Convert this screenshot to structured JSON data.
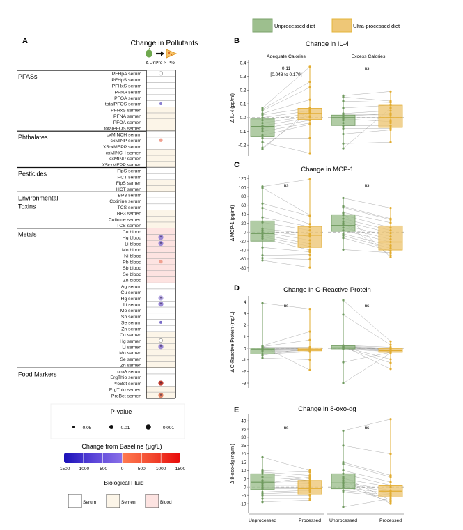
{
  "legend_top": {
    "items": [
      {
        "label": "Unprocessed diet",
        "color": "#9dbf8e",
        "border": "#7aa26a"
      },
      {
        "label": "Ultra-processed diet",
        "color": "#eec777",
        "border": "#e4b43a"
      }
    ]
  },
  "panelA": {
    "letter": "A",
    "title": "Change in Pollutants",
    "subtitle": "Δ UnPro > Pro",
    "icons": [
      "apple-icon",
      "arrow-right-icon",
      "pizza-icon"
    ],
    "fluid_colors": {
      "serum": "#ffffff",
      "semen": "#fcf5e8",
      "blood": "#fde3e1"
    },
    "groups": [
      {
        "name": "PFASs",
        "rows": [
          {
            "label": "PFHpA serum",
            "fluid": "serum",
            "marker": {
              "type": "open",
              "p": "0.05"
            }
          },
          {
            "label": "PFHpS serum",
            "fluid": "serum"
          },
          {
            "label": "PFHxS serum",
            "fluid": "serum"
          },
          {
            "label": "PFNA serum",
            "fluid": "serum"
          },
          {
            "label": "PFOA serum",
            "fluid": "serum"
          },
          {
            "label": "totalPFOS serum",
            "fluid": "serum",
            "marker": {
              "type": "filled",
              "color": "#8a7fd0",
              "p": "0.05"
            }
          },
          {
            "label": "PFHxS semen",
            "fluid": "semen"
          },
          {
            "label": "PFNA semen",
            "fluid": "semen"
          },
          {
            "label": "PFOA semen",
            "fluid": "semen"
          },
          {
            "label": "totalPFOS semen",
            "fluid": "semen"
          }
        ]
      },
      {
        "name": "Phthalates",
        "rows": [
          {
            "label": "cxMINCH serum",
            "fluid": "serum"
          },
          {
            "label": "cxMINP serum",
            "fluid": "serum",
            "marker": {
              "type": "filled",
              "color": "#f0a090",
              "p": "0.01"
            }
          },
          {
            "label": "X5cxMEPP serum",
            "fluid": "serum"
          },
          {
            "label": "cxMINCH semen",
            "fluid": "semen"
          },
          {
            "label": "cxMINP semen",
            "fluid": "semen"
          },
          {
            "label": "X5cxMEPP semen",
            "fluid": "semen"
          }
        ]
      },
      {
        "name": "Pesticides",
        "rows": [
          {
            "label": "FipS serum",
            "fluid": "serum"
          },
          {
            "label": "HCT serum",
            "fluid": "serum"
          },
          {
            "label": "FipS semen",
            "fluid": "semen"
          },
          {
            "label": "HCT semen",
            "fluid": "semen"
          }
        ]
      },
      {
        "name": "Environmental Toxins",
        "name_lines": [
          "Environmental",
          "Toxins"
        ],
        "rows": [
          {
            "label": "BP3 serum",
            "fluid": "serum"
          },
          {
            "label": "Cotinine serum",
            "fluid": "serum"
          },
          {
            "label": "TCS serum",
            "fluid": "serum"
          },
          {
            "label": "BP3 semen",
            "fluid": "semen"
          },
          {
            "label": "Cotinine semen",
            "fluid": "semen"
          },
          {
            "label": "TCS semen",
            "fluid": "semen"
          }
        ]
      },
      {
        "name": "Metals",
        "rows": [
          {
            "label": "Cu blood",
            "fluid": "blood"
          },
          {
            "label": "Hg blood",
            "fluid": "blood",
            "marker": {
              "type": "filled",
              "color": "#9a88d6",
              "p": "0.001",
              "star": true
            }
          },
          {
            "label": "Li blood",
            "fluid": "blood",
            "marker": {
              "type": "filled",
              "color": "#9a88d6",
              "p": "0.001",
              "star": true
            }
          },
          {
            "label": "Mo blood",
            "fluid": "blood"
          },
          {
            "label": "Ni blood",
            "fluid": "blood"
          },
          {
            "label": "Pb blood",
            "fluid": "blood",
            "marker": {
              "type": "filled",
              "color": "#f0a090",
              "p": "0.01"
            }
          },
          {
            "label": "Sb blood",
            "fluid": "blood"
          },
          {
            "label": "Se blood",
            "fluid": "blood"
          },
          {
            "label": "Zn blood",
            "fluid": "blood"
          },
          {
            "label": "Ag serum",
            "fluid": "serum"
          },
          {
            "label": "Cu serum",
            "fluid": "serum"
          },
          {
            "label": "Hg serum",
            "fluid": "serum",
            "marker": {
              "type": "filled",
              "color": "#b5a8e2",
              "p": "0.001",
              "star": true
            }
          },
          {
            "label": "Li serum",
            "fluid": "serum",
            "marker": {
              "type": "filled",
              "color": "#9a88d6",
              "p": "0.001",
              "star": true
            }
          },
          {
            "label": "Mo serum",
            "fluid": "serum"
          },
          {
            "label": "Sb serum",
            "fluid": "serum"
          },
          {
            "label": "Se serum",
            "fluid": "serum",
            "marker": {
              "type": "filled",
              "color": "#7a6cc8",
              "p": "0.05"
            }
          },
          {
            "label": "Zn serum",
            "fluid": "serum"
          },
          {
            "label": "Cu semen",
            "fluid": "semen"
          },
          {
            "label": "Hg semen",
            "fluid": "semen",
            "marker": {
              "type": "open",
              "p": "0.05"
            }
          },
          {
            "label": "Li semen",
            "fluid": "semen",
            "marker": {
              "type": "filled",
              "color": "#9a88d6",
              "p": "0.001",
              "star": true
            }
          },
          {
            "label": "Mo semen",
            "fluid": "semen"
          },
          {
            "label": "Se semen",
            "fluid": "semen"
          },
          {
            "label": "Zn semen",
            "fluid": "semen"
          }
        ]
      },
      {
        "name": "Food Markers",
        "rows": [
          {
            "label": "uroA serum",
            "fluid": "serum"
          },
          {
            "label": "ErgThio serum",
            "fluid": "serum"
          },
          {
            "label": "ProBet serum",
            "fluid": "serum",
            "marker": {
              "type": "filled",
              "color": "#c0392b",
              "p": "0.001",
              "star": true
            }
          },
          {
            "label": "ErgThio semen",
            "fluid": "semen"
          },
          {
            "label": "ProBet semen",
            "fluid": "semen",
            "marker": {
              "type": "filled",
              "color": "#e08060",
              "p": "0.001",
              "star": true
            }
          }
        ]
      }
    ],
    "pvalue_legend": {
      "title": "P-value",
      "items": [
        "0.05",
        "0.01",
        "0.001"
      ]
    },
    "colorbar": {
      "title": "Change from Baseline (μg/L)",
      "ticks": [
        "-1500",
        "-1000",
        "-500",
        "0",
        "500",
        "1000",
        "1500"
      ],
      "stops": [
        "#1a10b8",
        "#5a44d8",
        "#8a70e8",
        "#ff7a50",
        "#f24a30",
        "#e80a0a"
      ]
    },
    "fluid_legend": {
      "title": "Biological Fluid",
      "items": [
        {
          "label": "Serum",
          "fluid": "serum"
        },
        {
          "label": "Semen",
          "fluid": "semen"
        },
        {
          "label": "Blood",
          "fluid": "blood"
        }
      ]
    }
  },
  "chart_data": [
    {
      "type": "box",
      "letter": "B",
      "title": "Change in IL-4",
      "ylabel": "Δ IL-4 (pg/ml)",
      "ylim": [
        -0.27,
        0.41
      ],
      "yticks": [
        -0.2,
        -0.1,
        0.0,
        0.1,
        0.2,
        0.3,
        0.4
      ],
      "ytick_labels": [
        "-0.2",
        "-0.1",
        "0.0",
        "0.1",
        "0.2",
        "0.3",
        "0.4"
      ],
      "facets": [
        "Adequate Calories",
        "Excess Calories"
      ],
      "annotations": [
        [
          "0.11",
          "[0.048 to 0.179]"
        ],
        [
          "ns"
        ]
      ],
      "categories": [
        "Unprocessed",
        "Processed"
      ],
      "boxes": [
        [
          {
            "q1": -0.135,
            "median": -0.065,
            "q3": -0.01
          },
          {
            "q1": -0.015,
            "median": 0.03,
            "q3": 0.068
          }
        ],
        [
          {
            "q1": -0.058,
            "median": 0.0,
            "q3": 0.018
          },
          {
            "q1": -0.072,
            "median": 0.0,
            "q3": 0.09
          }
        ]
      ],
      "points": [
        [
          [
            0.07,
            0.06,
            0.05,
            0.03,
            0.02,
            0.0,
            -0.02,
            -0.04,
            -0.06,
            -0.08,
            -0.1,
            -0.13,
            -0.15,
            -0.18,
            -0.23,
            -0.22
          ],
          [
            0.37,
            0.26,
            0.22,
            0.13,
            0.07,
            0.05,
            0.03,
            0.01,
            0.0,
            -0.02,
            -0.04,
            -0.05,
            -0.15,
            -0.26,
            0.06,
            0.04
          ]
        ],
        [
          [
            0.16,
            0.15,
            0.12,
            0.07,
            0.03,
            0.01,
            0.0,
            -0.02,
            -0.04,
            -0.06,
            -0.08,
            -0.12,
            -0.19,
            -0.225,
            0.02,
            -0.01
          ],
          [
            0.19,
            0.12,
            0.11,
            0.09,
            0.05,
            0.03,
            0.0,
            -0.02,
            -0.04,
            -0.06,
            -0.08,
            -0.09,
            -0.18,
            0.07,
            0.02,
            -0.03
          ]
        ]
      ]
    },
    {
      "type": "box",
      "letter": "C",
      "title": "Change in MCP-1",
      "ylabel": "Δ MCP-1 (pg/ml)",
      "ylim": [
        -85,
        125
      ],
      "yticks": [
        -80,
        -60,
        -40,
        -20,
        0,
        20,
        40,
        60,
        80,
        100,
        120
      ],
      "ytick_labels": [
        "-80",
        "-60",
        "-40",
        "-20",
        "0",
        "20",
        "40",
        "60",
        "80",
        "100",
        "120"
      ],
      "facets": [
        "",
        ""
      ],
      "annotations": [
        [
          "ns"
        ],
        [
          "ns"
        ]
      ],
      "categories": [
        "Unprocessed",
        "Processed"
      ],
      "boxes": [
        [
          {
            "q1": -20,
            "median": -3,
            "q3": 25
          },
          {
            "q1": -34,
            "median": -7,
            "q3": 13
          }
        ],
        [
          {
            "q1": 2,
            "median": 15,
            "q3": 39
          },
          {
            "q1": -40,
            "median": -22,
            "q3": 14
          }
        ]
      ],
      "points": [
        [
          [
            102,
            99,
            64,
            54,
            33,
            22,
            8,
            4,
            0,
            -6,
            -10,
            -14,
            -34,
            -52,
            -58,
            -63
          ],
          [
            118,
            38,
            36,
            18,
            12,
            4,
            -4,
            -10,
            -18,
            -26,
            -32,
            -40,
            -44,
            -50,
            -61,
            -79
          ]
        ],
        [
          [
            76,
            58,
            55,
            44,
            38,
            30,
            24,
            16,
            10,
            4,
            -4,
            -8,
            -13,
            -39,
            20,
            42
          ],
          [
            54,
            30,
            28,
            21,
            10,
            4,
            -2,
            -10,
            -16,
            -22,
            -30,
            -36,
            -42,
            -46,
            -52,
            -56
          ]
        ]
      ]
    },
    {
      "type": "box",
      "letter": "D",
      "title": "Change in C-Reactive Protein",
      "ylabel": "Δ C-Reactive Protein (mg/L)",
      "ylim": [
        -3.3,
        4.4
      ],
      "yticks": [
        -3,
        -2,
        -1,
        0,
        1,
        2,
        3,
        4
      ],
      "ytick_labels": [
        "-3",
        "-2",
        "-1",
        "0",
        "1",
        "2",
        "3",
        "4"
      ],
      "facets": [
        "",
        ""
      ],
      "annotations": [
        [
          "ns"
        ],
        [
          "ns"
        ]
      ],
      "categories": [
        "Unprocessed",
        "Processed"
      ],
      "boxes": [
        [
          {
            "q1": -0.5,
            "median": -0.1,
            "q3": 0.02
          },
          {
            "q1": -0.22,
            "median": -0.1,
            "q3": 0.05
          }
        ],
        [
          {
            "q1": -0.05,
            "median": 0.05,
            "q3": 0.22
          },
          {
            "q1": -0.35,
            "median": -0.2,
            "q3": 0.0
          }
        ]
      ],
      "points": [
        [
          [
            3.9,
            0.22,
            0.15,
            0.1,
            0.05,
            0.0,
            -0.05,
            -0.1,
            -0.2,
            -0.3,
            -0.5,
            -0.85,
            0.18,
            -0.6,
            0.08,
            -0.02
          ],
          [
            3.4,
            1.45,
            0.72,
            0.1,
            0.05,
            0.0,
            -0.05,
            -0.1,
            -0.15,
            -0.2,
            -0.3,
            -0.98,
            -1.88,
            0.02,
            -0.08,
            -0.25
          ]
        ],
        [
          [
            4.15,
            2.9,
            0.25,
            0.2,
            0.15,
            0.1,
            0.05,
            0.0,
            -0.05,
            -1.2,
            -3.0,
            0.12,
            0.08,
            0.18,
            0.02,
            0.22
          ],
          [
            0.6,
            0.3,
            0.1,
            0.0,
            -0.1,
            -0.15,
            -0.2,
            -0.25,
            -0.3,
            -0.35,
            -0.4,
            -0.95,
            -1.25,
            -1.78,
            -0.05,
            -0.18
          ]
        ]
      ]
    },
    {
      "type": "box",
      "letter": "E",
      "title": "Change in 8-oxo-dg",
      "ylabel": "Δ 8-oxo-dg (ng/ml)",
      "ylim": [
        -15,
        43
      ],
      "yticks": [
        -10,
        -5,
        0,
        5,
        10,
        15,
        20,
        25,
        30,
        35,
        40
      ],
      "ytick_labels": [
        "-10",
        "-5",
        "0",
        "5",
        "10",
        "15",
        "20",
        "25",
        "30",
        "35",
        "40"
      ],
      "facets": [
        "",
        ""
      ],
      "annotations": [
        [
          "ns"
        ],
        [
          "ns"
        ]
      ],
      "categories": [
        "Unprocessed",
        "Processed"
      ],
      "xtick_labels": [
        "Unprocessed",
        "Processed",
        "Unprocessed",
        "Processed"
      ],
      "boxes": [
        [
          {
            "q1": -1.5,
            "median": 3,
            "q3": 8
          },
          {
            "q1": -4.5,
            "median": -0.8,
            "q3": 4
          }
        ],
        [
          {
            "q1": -1,
            "median": 2.5,
            "q3": 8
          },
          {
            "q1": -6,
            "median": -2.5,
            "q3": 0.8
          }
        ]
      ],
      "points": [
        [
          [
            18,
            10,
            9,
            8,
            6,
            4,
            3,
            1,
            0,
            -1,
            -3,
            -4,
            -5,
            -7,
            -9,
            2
          ],
          [
            10,
            9,
            7,
            5,
            4,
            3,
            2,
            1,
            0,
            -1,
            -2,
            -3,
            -5,
            -7,
            -8,
            6
          ]
        ],
        [
          [
            34,
            25,
            15,
            14,
            10,
            8,
            5,
            3,
            2,
            0,
            -2,
            -3,
            -12,
            1,
            4,
            6
          ],
          [
            41,
            20,
            7,
            6,
            3,
            1,
            0,
            -2,
            -3,
            -4,
            -5,
            -6,
            -7,
            -9,
            -10,
            -8
          ]
        ]
      ]
    }
  ]
}
